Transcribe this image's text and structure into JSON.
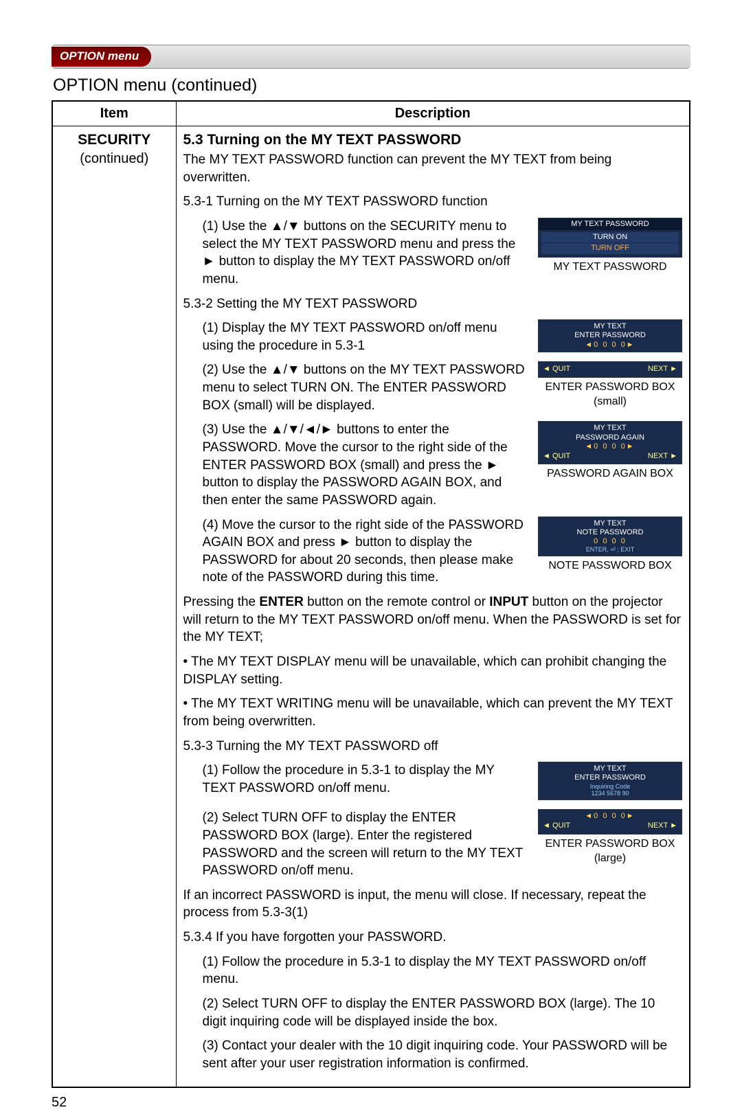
{
  "tab": {
    "label": "OPTION menu"
  },
  "page_title": "OPTION menu (continued)",
  "columns": {
    "item": "Item",
    "description": "Description"
  },
  "item": {
    "name": "SECURITY",
    "sub": "(continued)"
  },
  "section": {
    "heading": "5.3 Turning on the MY TEXT PASSWORD",
    "intro": "The MY TEXT PASSWORD function can prevent the MY TEXT from being overwritten.",
    "s531_title": "5.3-1 Turning on the MY TEXT PASSWORD function",
    "s531_1": "(1) Use the ▲/▼ buttons on the SECURITY menu to select the MY TEXT PASSWORD menu and press the ► button to display the MY TEXT PASSWORD on/off menu.",
    "s532_title": "5.3-2 Setting the MY TEXT PASSWORD",
    "s532_1": "(1) Display the MY TEXT PASSWORD on/off menu using the procedure in 5.3-1",
    "s532_2": "(2) Use the ▲/▼ buttons on the MY TEXT PASSWORD menu to select TURN ON. The ENTER PASSWORD BOX (small) will be displayed.",
    "s532_3": "(3) Use the ▲/▼/◄/► buttons to enter the PASSWORD. Move the cursor to the right side of the ENTER PASSWORD BOX (small) and press the ► button to display the PASSWORD AGAIN BOX, and then enter the same PASSWORD again.",
    "s532_4": "(4) Move the cursor to the right side of the PASSWORD AGAIN BOX and press ► button to display the PASSWORD for about 20 seconds, then please make note of the PASSWORD during this time.",
    "post_a": "Pressing the ",
    "post_enter": "ENTER",
    "post_b": " button on the remote control or ",
    "post_input": "INPUT",
    "post_c": " button on the projector will return to the MY TEXT PASSWORD on/off menu. When the PASSWORD is set for the MY TEXT;",
    "bullet1": "• The MY TEXT DISPLAY menu will be unavailable, which can prohibit changing the DISPLAY setting.",
    "bullet2": "• The MY TEXT WRITING menu will be unavailable, which can prevent the MY TEXT from being overwritten.",
    "s533_title": "5.3-3 Turning the MY TEXT PASSWORD off",
    "s533_1": "(1) Follow the procedure in 5.3-1 to display the MY TEXT PASSWORD on/off menu.",
    "s533_2a": "(2) Select TURN OFF to display the ENTER PASSWORD BOX (large). Enter the registered PASSWORD and the screen will return to the MY TEXT PASSWORD on/off menu.",
    "s533_2b": "If an incorrect PASSWORD is input, the menu will close. If necessary, repeat the process from 5.3-3(1)",
    "s534_title": "5.3.4 If you have forgotten your PASSWORD.",
    "s534_1": "(1) Follow the procedure in 5.3-1 to display the MY TEXT PASSWORD on/off menu.",
    "s534_2": "(2) Select TURN OFF to display the ENTER PASSWORD BOX (large). The 10 digit inquiring code will be displayed inside the box.",
    "s534_3": "(3) Contact your dealer with the 10 digit inquiring code. Your PASSWORD will be sent after your user registration information is confirmed."
  },
  "figures": {
    "f1": {
      "hdr": "MY TEXT PASSWORD",
      "opt1": "TURN ON",
      "opt2": "TURN OFF",
      "cap": "MY TEXT PASSWORD"
    },
    "f2": {
      "line1": "MY TEXT",
      "line2": "ENTER PASSWORD",
      "digits": "◄0 0 0 0►",
      "quit": "◄ QUIT",
      "next": "NEXT ►",
      "cap1": "ENTER PASSWORD BOX",
      "cap2": "(small)"
    },
    "f3": {
      "line1": "MY TEXT",
      "line2": "PASSWORD AGAIN",
      "digits": "◄0 0 0 0►",
      "quit": "◄ QUIT",
      "next": "NEXT ►",
      "cap": "PASSWORD AGAIN BOX"
    },
    "f4": {
      "line1": "MY TEXT",
      "line2": "NOTE PASSWORD",
      "digits": "0 0 0 0",
      "hint": "ENTER, ⏎ ; EXIT",
      "cap": "NOTE PASSWORD BOX"
    },
    "f5": {
      "line1": "MY TEXT",
      "line2": "ENTER PASSWORD",
      "inq1": "Inquiring Code",
      "inq2": "1234 5678 90",
      "digits": "◄0 0 0 0►",
      "quit": "◄ QUIT",
      "next": "NEXT ►",
      "cap1": "ENTER PASSWORD BOX",
      "cap2": "(large)"
    }
  },
  "page_number": "52",
  "colors": {
    "tab_bg_dark": "#6a0000",
    "osd_bg": "#1a2a4a",
    "osd_accent": "#ffcc55"
  }
}
